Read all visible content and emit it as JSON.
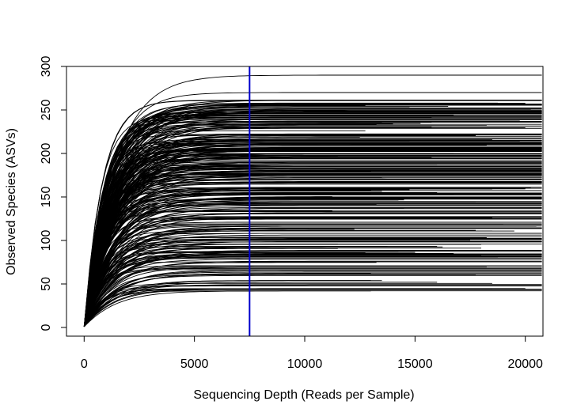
{
  "chart_data": {
    "type": "line",
    "title": "",
    "xlabel": "Sequencing Depth (Reads per Sample)",
    "ylabel": "Observed Species (ASVs)",
    "xlim": [
      -800,
      20800
    ],
    "ylim": [
      -10,
      300
    ],
    "x_ticks": [
      0,
      5000,
      10000,
      15000,
      20000
    ],
    "y_ticks": [
      0,
      50,
      100,
      150,
      200,
      250,
      300
    ],
    "grid": false,
    "legend": "none",
    "curve_color": "#000000",
    "reference_line": {
      "x": 7500,
      "color": "#0000cc"
    },
    "series_summary": {
      "count": 320,
      "min_final_y": 42,
      "max_final_y": 290,
      "x_start": 0
    },
    "example_series": [
      {
        "max_x": 20800,
        "final_y": 290
      },
      {
        "max_x": 20800,
        "final_y": 270
      },
      {
        "max_x": 13200,
        "final_y": 42
      },
      {
        "max_x": 16000,
        "final_y": 52
      },
      {
        "max_x": 20800,
        "final_y": 65
      }
    ]
  }
}
